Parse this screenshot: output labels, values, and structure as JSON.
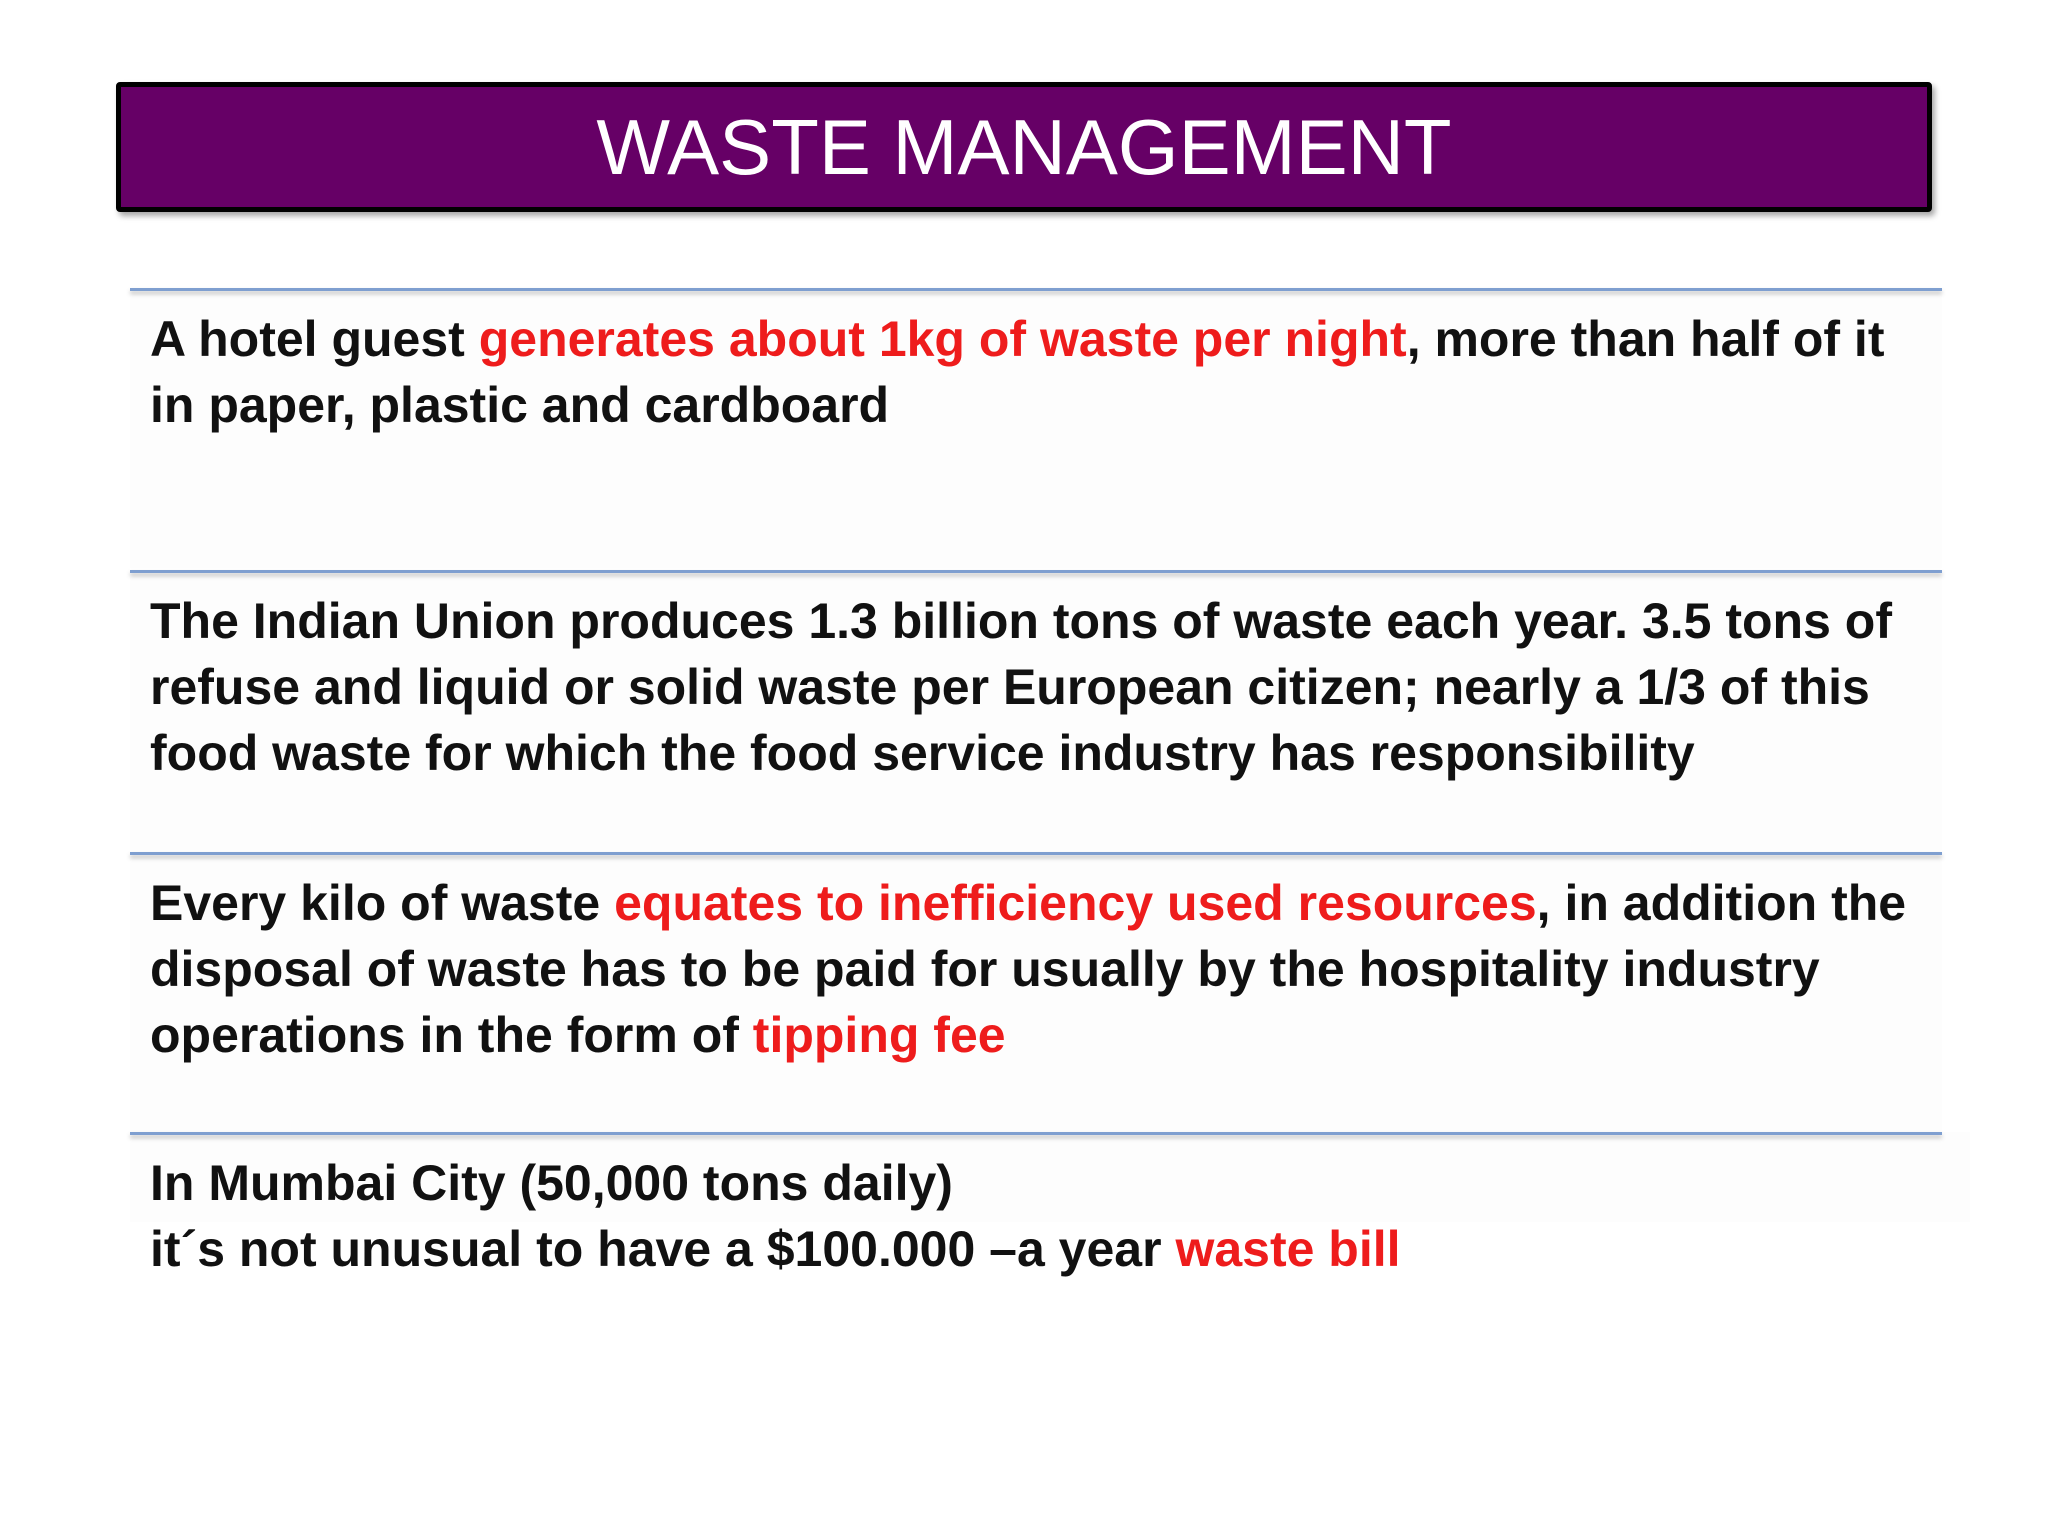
{
  "slide": {
    "title": "WASTE MANAGEMENT"
  },
  "colors": {
    "title_bg": "#660066",
    "highlight": "#ee1c1c",
    "rule": "#7f9fd0"
  },
  "blocks": [
    {
      "p1": "A hotel guest ",
      "h1": "generates about 1kg of waste per night",
      "p2": ", more than half of it in paper, plastic and cardboard"
    },
    {
      "p1": "The Indian Union produces 1.3 billion tons of waste each year. 3.5 tons of refuse and liquid or solid waste per European citizen; nearly a 1/3 of this food waste for which the food service industry has responsibility"
    },
    {
      "p1": "Every kilo of waste ",
      "h1": "equates to inefficiency used resources",
      "p2": ", in addition the disposal of waste has to be paid for usually by the hospitality industry operations in the form of ",
      "h2": "tipping fee"
    },
    {
      "line1": "In Mumbai City (50,000 tons daily)",
      "p1": "it´s not unusual to have a $100.000 –a year ",
      "h1": "waste bill"
    }
  ]
}
